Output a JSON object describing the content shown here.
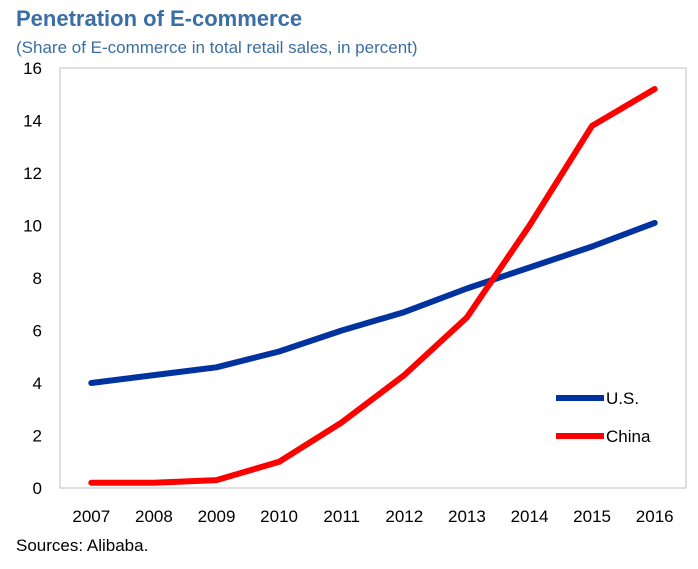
{
  "chart_data": {
    "type": "line",
    "title": "Penetration of E-commerce",
    "subtitle": "(Share of E-commerce in total retail sales, in percent)",
    "source": "Sources: Alibaba.",
    "xlabel": "",
    "ylabel": "",
    "categories": [
      "2007",
      "2008",
      "2009",
      "2010",
      "2011",
      "2012",
      "2013",
      "2014",
      "2015",
      "2016"
    ],
    "y_ticks": [
      "0",
      "2",
      "4",
      "6",
      "8",
      "10",
      "12",
      "14",
      "16"
    ],
    "ylim": [
      0,
      16
    ],
    "grid": false,
    "legend_position": "bottom-right",
    "series": [
      {
        "name": "U.S.",
        "color": "#0033a0",
        "values": [
          4.0,
          4.3,
          4.6,
          5.2,
          6.0,
          6.7,
          7.6,
          8.4,
          9.2,
          10.1
        ]
      },
      {
        "name": "China",
        "color": "#ff0000",
        "values": [
          0.2,
          0.2,
          0.3,
          1.0,
          2.5,
          4.3,
          6.5,
          10.0,
          13.8,
          15.2
        ]
      }
    ]
  }
}
